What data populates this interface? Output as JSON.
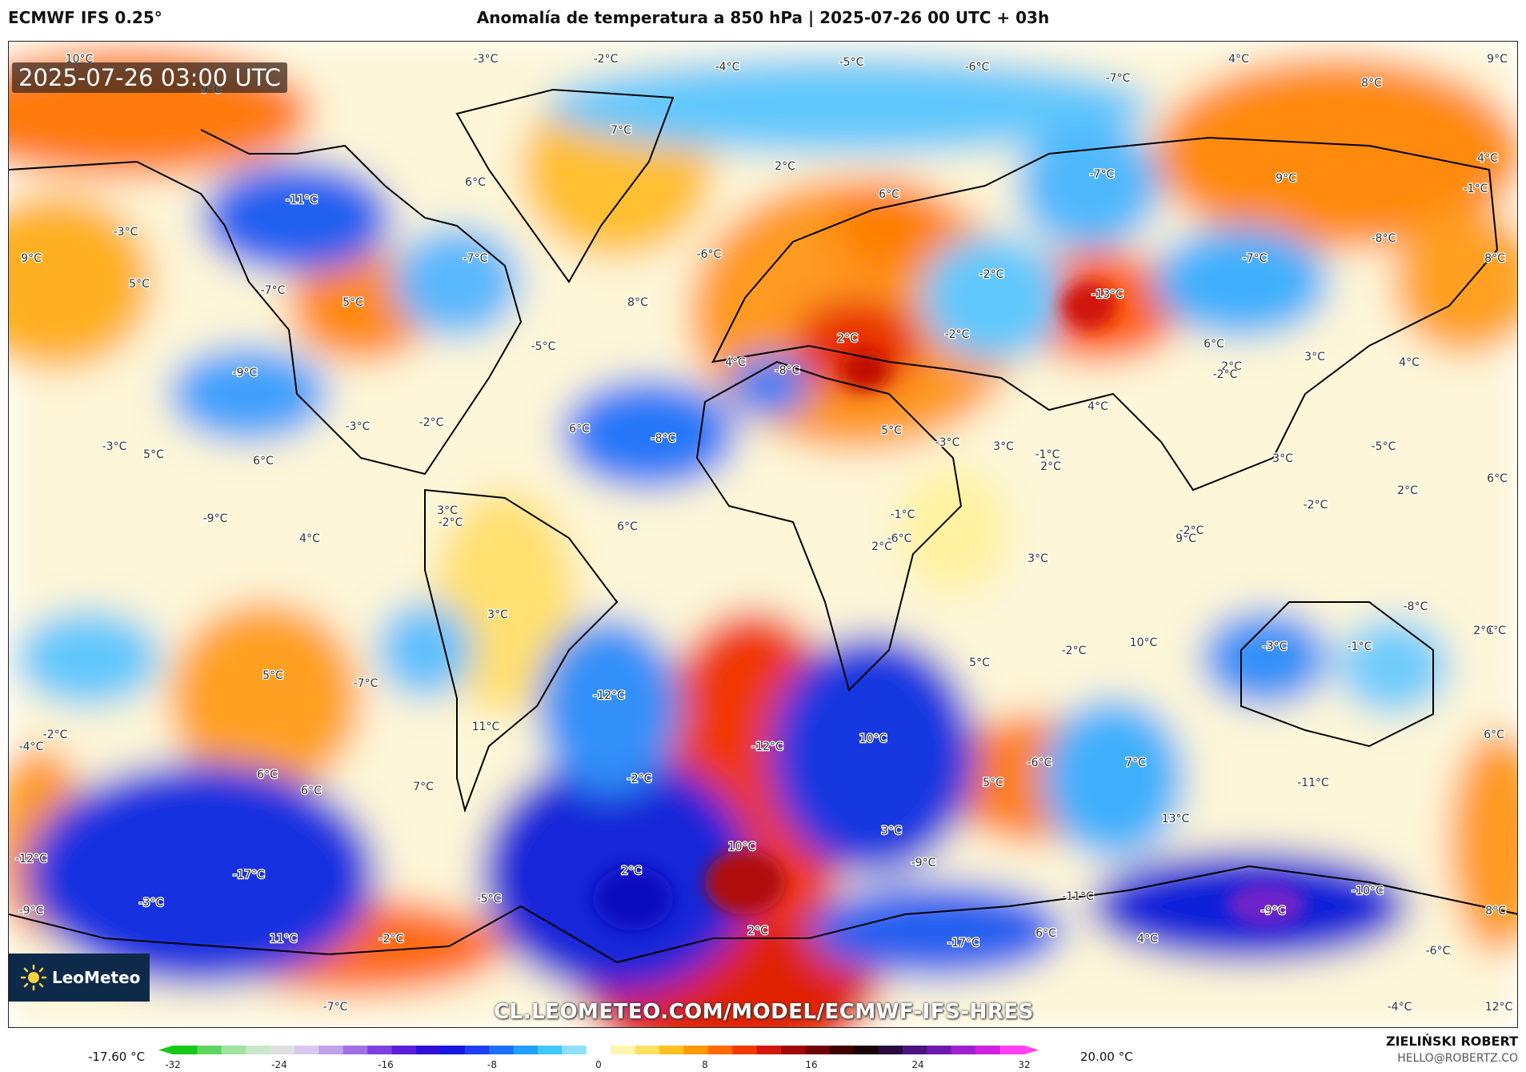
{
  "header": {
    "model": "ECMWF IFS 0.25°",
    "title": "Anomalía de temperatura a 850 hPa | 2025-07-26 00 UTC + 03h"
  },
  "map": {
    "valid_time": "2025-07-26 03:00 UTC",
    "logo": "LeoMeteo",
    "logo_icon": "sun-icon",
    "url": "CL.LEOMETEO.COM/MODEL/ECMWF-IFS-HRES",
    "labels": [
      "10°C",
      "-3°C",
      "-2°C",
      "-4°C",
      "-5°C",
      "-6°C",
      "4°C",
      "9°C",
      "9°C",
      "-7°C",
      "7°C",
      "-11°C",
      "-3°C",
      "6°C",
      "8°C",
      "2°C",
      "-7°C",
      "4°C",
      "-1°C",
      "9°C",
      "6°C",
      "-7°C",
      "9°C",
      "-6°C",
      "-2°C",
      "-7°C",
      "-8°C",
      "8°C",
      "5°C",
      "8°C",
      "-13°C",
      "-5°C",
      "-7°C",
      "-9°C",
      "5°C",
      "-2°C",
      "4°C",
      "6°C",
      "-8°C",
      "5°C",
      "-8°C",
      "6°C",
      "2°C",
      "3°C",
      "-3°C",
      "4°C",
      "-2°C",
      "4°C",
      "-2°C",
      "-3°C",
      "3°C",
      "-3°C",
      "-1°C",
      "2°C",
      "3°C",
      "6°C",
      "-5°C",
      "5°C",
      "-9°C",
      "6°C",
      "2°C",
      "-2°C",
      "4°C",
      "-6°C",
      "-2°C",
      "2°C",
      "3°C",
      "9°C",
      "-8°C",
      "-3°C",
      "-1°C",
      "4°C",
      "5°C",
      "-2°C",
      "10°C",
      "5°C",
      "-7°C",
      "-12°C",
      "11°C",
      "-12°C",
      "10°C",
      "-6°C",
      "7°C",
      "6°C",
      "-4°C",
      "-2°C",
      "6°C",
      "6°C",
      "7°C",
      "-2°C",
      "5°C",
      "-11°C",
      "3°C",
      "13°C",
      "10°C",
      "-12°C",
      "-17°C",
      "2°C",
      "-9°C",
      "-9°C",
      "-3°C",
      "-5°C",
      "-11°C",
      "-17°C",
      "-9°C",
      "-10°C",
      "8°C",
      "11°C",
      "-2°C",
      "2°C",
      "6°C",
      "4°C",
      "-6°C",
      "-7°C",
      "-4°C",
      "12°C",
      "2°C",
      "-1°C",
      "2°C",
      "-2°C",
      "6°C",
      "3°C",
      "3°C",
      "-2°C"
    ]
  },
  "legend": {
    "min_label": "-17.60 °C",
    "max_label": "20.00 °C",
    "ticks": [
      "-32",
      "-24",
      "-16",
      "-8",
      "0",
      "8",
      "16",
      "24",
      "32"
    ],
    "colors": [
      "#18c818",
      "#5ed65e",
      "#a0e2a0",
      "#c8e8c8",
      "#e0e0e0",
      "#d8c8ee",
      "#c0a0ea",
      "#a070e4",
      "#8040e0",
      "#5a1ed8",
      "#3010d8",
      "#1818e0",
      "#1c40f0",
      "#1c70f8",
      "#20a0fc",
      "#40c8fc",
      "#90e0fc",
      "#ffffff",
      "#fff6b0",
      "#ffe060",
      "#ffc020",
      "#ff9a00",
      "#ff6a00",
      "#f03a00",
      "#d01810",
      "#a00808",
      "#700404",
      "#400000",
      "#180408",
      "#280a40",
      "#4a1480",
      "#7018b0",
      "#a020d0",
      "#d020e0",
      "#ff40f0"
    ]
  },
  "footer": {
    "author": "ZIELIŃSKI ROBERT",
    "email": "HELLO@ROBERTZ.CO"
  }
}
